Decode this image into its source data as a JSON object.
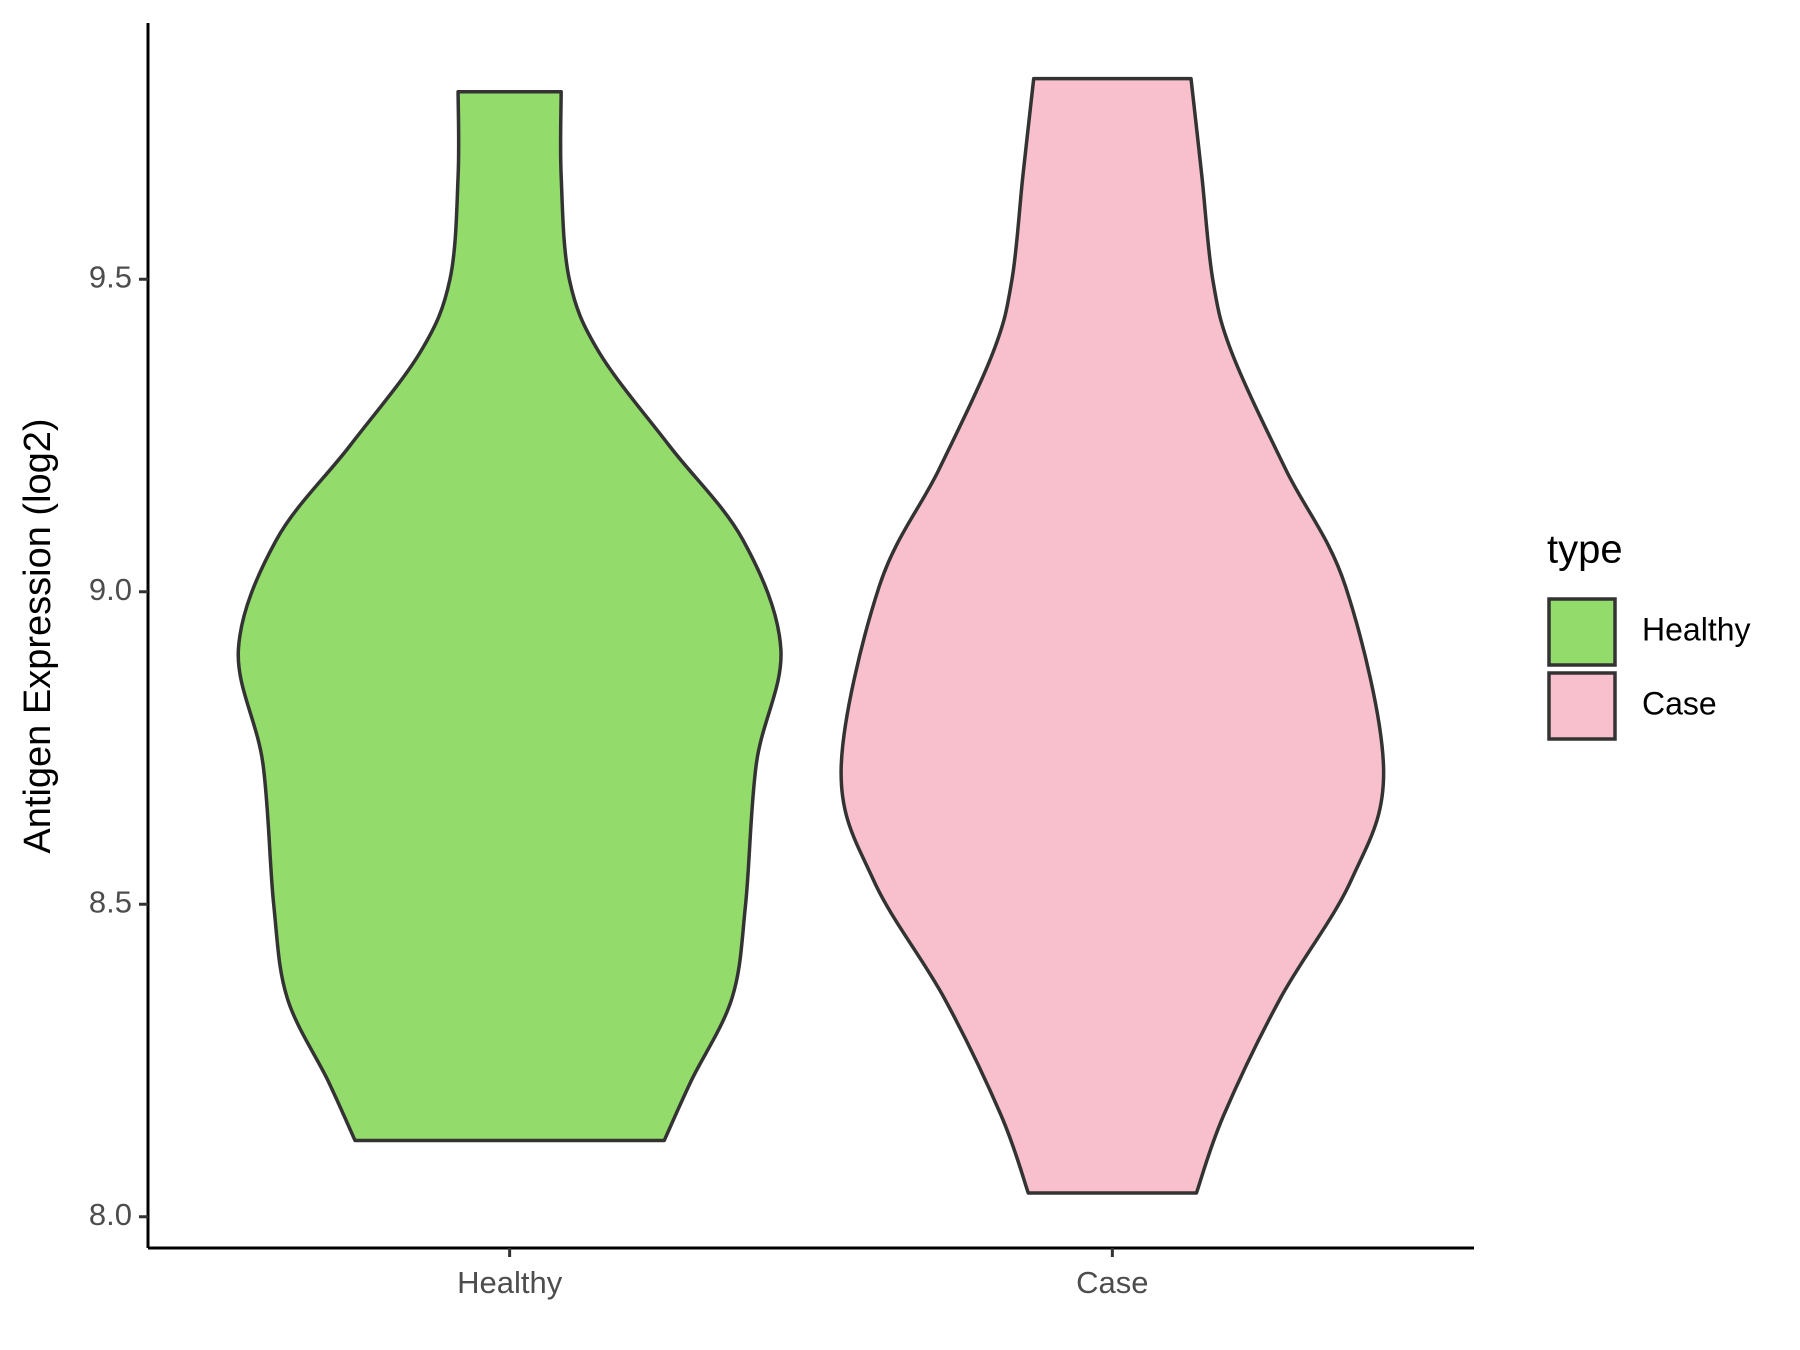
{
  "chart_data": {
    "type": "violin",
    "ylabel": "Antigen Expression (log2)",
    "legend_title": "type",
    "categories": [
      "Healthy",
      "Case"
    ],
    "series": [
      {
        "name": "Healthy",
        "color": "#93db6a",
        "y": [
          8.122,
          8.218,
          8.35,
          8.5,
          8.726,
          8.908,
          9.083,
          9.233,
          9.383,
          9.5,
          9.665,
          9.8
        ],
        "width": [
          0.57,
          0.67,
          0.82,
          0.87,
          0.91,
          1.0,
          0.86,
          0.59,
          0.33,
          0.22,
          0.19,
          0.19
        ]
      },
      {
        "name": "Case",
        "color": "#f8c0cc",
        "y": [
          8.038,
          8.162,
          8.35,
          8.538,
          8.716,
          9.008,
          9.195,
          9.383,
          9.5,
          9.665,
          9.821
        ],
        "width": [
          0.31,
          0.41,
          0.62,
          0.88,
          1.0,
          0.86,
          0.64,
          0.44,
          0.37,
          0.33,
          0.29
        ]
      }
    ],
    "ylim": [
      7.95,
      9.91
    ],
    "yticks": [
      {
        "value": 8,
        "label": "8.0"
      },
      8.5,
      {
        "value": 9,
        "label": "9.0"
      },
      9.5
    ],
    "legend_position": "right"
  }
}
